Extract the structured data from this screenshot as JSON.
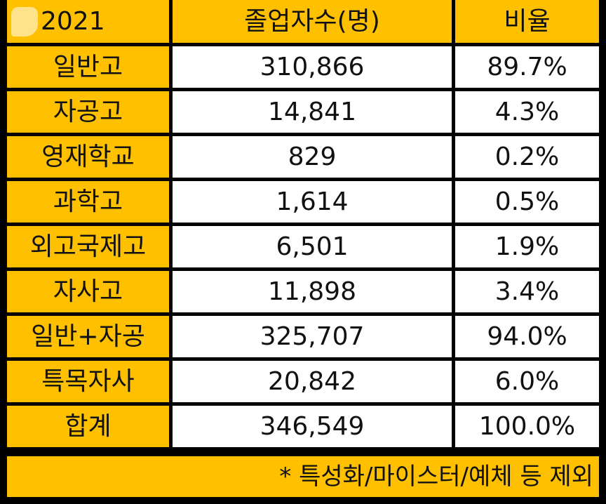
{
  "table": {
    "headers": [
      "2021",
      "졸업자수(명)",
      "비율"
    ],
    "rows": [
      {
        "label": "일반고",
        "count": "310,866",
        "ratio": "89.7%"
      },
      {
        "label": "자공고",
        "count": "14,841",
        "ratio": "4.3%"
      },
      {
        "label": "영재학교",
        "count": "829",
        "ratio": "0.2%"
      },
      {
        "label": "과학고",
        "count": "1,614",
        "ratio": "0.5%"
      },
      {
        "label": "외고국제고",
        "count": "6,501",
        "ratio": "1.9%"
      },
      {
        "label": "자사고",
        "count": "11,898",
        "ratio": "3.4%"
      },
      {
        "label": "일반+자공",
        "count": "325,707",
        "ratio": "94.0%"
      },
      {
        "label": "특목자사",
        "count": "20,842",
        "ratio": "6.0%"
      },
      {
        "label": "합계",
        "count": "346,549",
        "ratio": "100.0%"
      }
    ]
  },
  "footnote": "* 특성화/마이스터/예체 등 제외",
  "colors": {
    "accent": "#ffc000",
    "cell": "#ffffff",
    "grid": "#000000",
    "text": "#111111"
  }
}
